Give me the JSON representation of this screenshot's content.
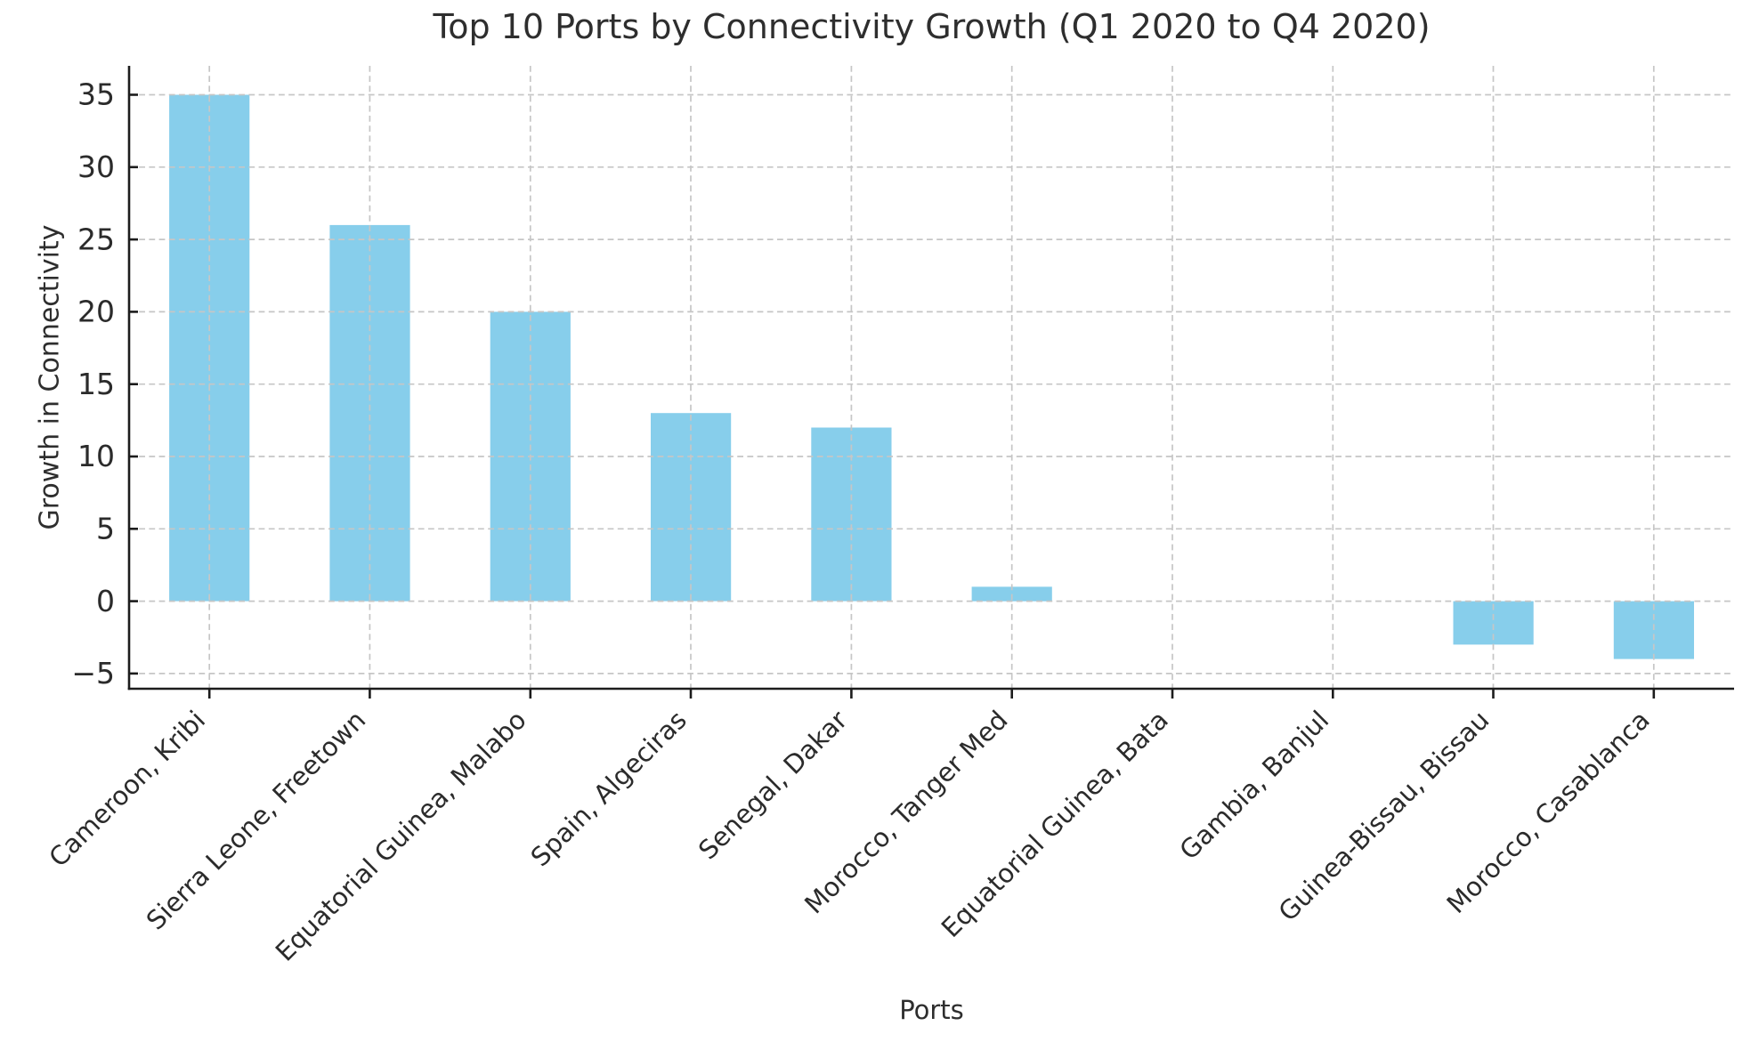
{
  "chart_data": {
    "type": "bar",
    "title": "Top 10 Ports by Connectivity Growth (Q1 2020 to Q4 2020)",
    "xlabel": "Ports",
    "ylabel": "Growth in Connectivity",
    "categories": [
      "Cameroon, Kribi",
      "Sierra Leone, Freetown",
      "Equatorial Guinea, Malabo",
      "Spain, Algeciras",
      "Senegal, Dakar",
      "Morocco, Tanger Med",
      "Equatorial Guinea, Bata",
      "Gambia, Banjul",
      "Guinea-Bissau, Bissau",
      "Morocco, Casablanca"
    ],
    "values": [
      35,
      26,
      20,
      13,
      12,
      1,
      0,
      0,
      -3,
      -4
    ],
    "yticks": [
      -5,
      0,
      5,
      10,
      15,
      20,
      25,
      30,
      35
    ],
    "ylim": [
      -6.05,
      37.0
    ],
    "x_tick_rotation": 45,
    "bar_width_fraction": 0.5,
    "grid": true,
    "legend": "none",
    "bar_color": "#87CEEB",
    "grid_color": "#c6c6c6",
    "axis_color": "#1c1c1c",
    "text_color": "#2b2b2b",
    "background_color": "#ffffff"
  }
}
